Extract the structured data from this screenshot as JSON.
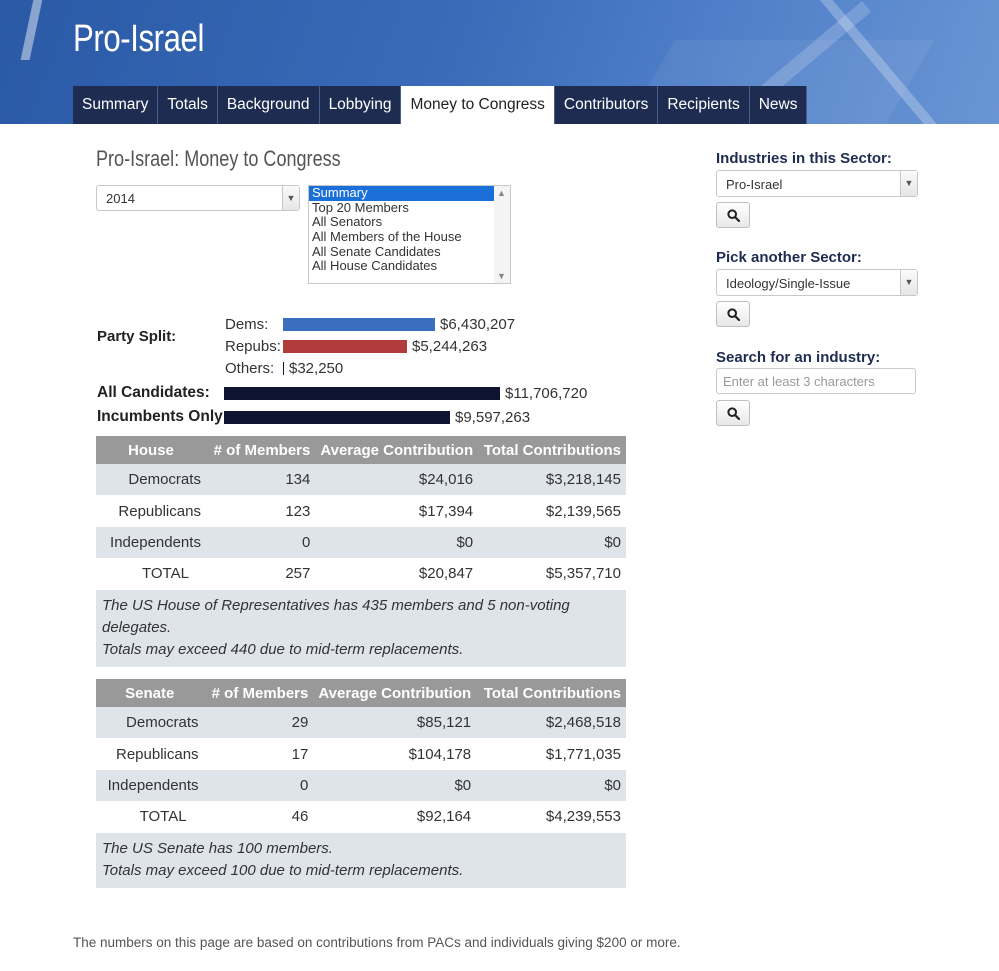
{
  "header": {
    "title": "Pro-Israel",
    "tabs": [
      "Summary",
      "Totals",
      "Background",
      "Lobbying",
      "Money to Congress",
      "Contributors",
      "Recipients",
      "News"
    ],
    "active_tab": "Money to Congress"
  },
  "main": {
    "title": "Pro-Israel: Money to Congress",
    "year_select": {
      "value": "2014"
    },
    "view_list": {
      "options": [
        "Summary",
        "Top 20 Members",
        "All Senators",
        "All Members of the House",
        "All Senate Candidates",
        "All House Candidates"
      ],
      "selected": "Summary"
    },
    "party_split": {
      "label": "Party Split:",
      "dems": {
        "label": "Dems:",
        "amount": "$6,430,207",
        "value": 6430207
      },
      "repubs": {
        "label": "Repubs:",
        "amount": "$5,244,263",
        "value": 5244263
      },
      "others": {
        "label": "Others:",
        "amount": "$32,250",
        "value": 32250
      }
    },
    "all_candidates": {
      "label": "All Candidates:",
      "amount": "$11,706,720",
      "value": 11706720
    },
    "incumbents": {
      "label": "Incumbents Only:",
      "amount": "$9,597,263",
      "value": 9597263
    },
    "house_table": {
      "headers": [
        "House",
        "# of Members",
        "Average Contribution",
        "Total Contributions"
      ],
      "rows": [
        [
          "Democrats",
          "134",
          "$24,016",
          "$3,218,145"
        ],
        [
          "Republicans",
          "123",
          "$17,394",
          "$2,139,565"
        ],
        [
          "Independents",
          "0",
          "$0",
          "$0"
        ],
        [
          "TOTAL",
          "257",
          "$20,847",
          "$5,357,710"
        ]
      ],
      "note_line1": "The US House of Representatives has 435 members and 5 non-voting delegates.",
      "note_line2": "Totals may exceed 440 due to mid-term replacements."
    },
    "senate_table": {
      "headers": [
        "Senate",
        "# of Members",
        "Average Contribution",
        "Total Contributions"
      ],
      "rows": [
        [
          "Democrats",
          "29",
          "$85,121",
          "$2,468,518"
        ],
        [
          "Republicans",
          "17",
          "$104,178",
          "$1,771,035"
        ],
        [
          "Independents",
          "0",
          "$0",
          "$0"
        ],
        [
          "TOTAL",
          "46",
          "$92,164",
          "$4,239,553"
        ]
      ],
      "note_line1": "The US Senate has 100 members.",
      "note_line2": "Totals may exceed 100 due to mid-term replacements."
    },
    "footer_note": "The numbers on this page are based on contributions from PACs and individuals giving $200 or more."
  },
  "sidebar": {
    "industries_heading": "Industries in this Sector:",
    "industries_value": "Pro-Israel",
    "sector_heading": "Pick another Sector:",
    "sector_value": "Ideology/Single-Issue",
    "search_heading": "Search for an industry:",
    "search_placeholder": "Enter at least 3 characters"
  },
  "colors": {
    "nav_bg": "#1e2c52",
    "dems_bar": "#3a6fbf",
    "repubs_bar": "#b23b3b",
    "total_bar": "#0f1433",
    "table_header": "#999999",
    "row_shade": "#dfe3ea"
  },
  "icons": {
    "search": "magnifier-icon",
    "dropdown": "chevron-down-icon"
  }
}
